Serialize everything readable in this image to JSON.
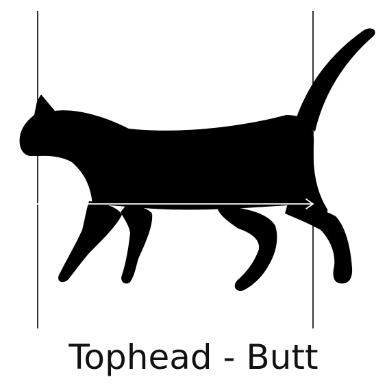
{
  "caption": "Tophead - Butt",
  "colors": {
    "background": "#ffffff",
    "silhouette": "#000000",
    "reference_lines": "#000000",
    "measure_arrow": "#ffffff",
    "caption_text": "#111111"
  },
  "icons": {
    "figure": "cat-silhouette",
    "measurement": "double-headed-arrow"
  }
}
